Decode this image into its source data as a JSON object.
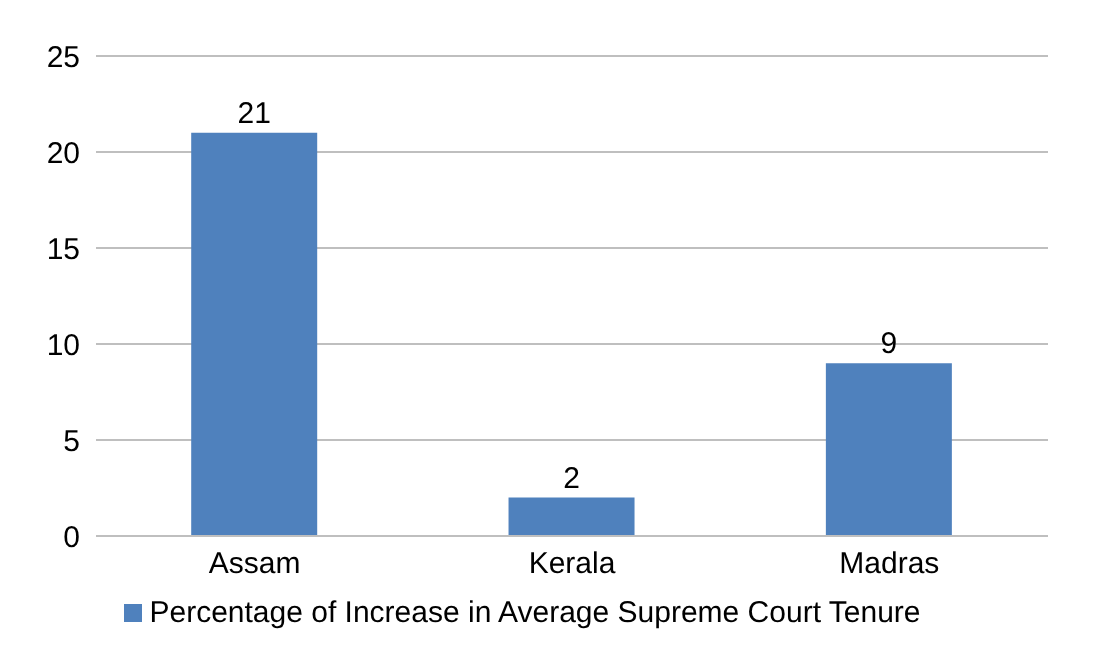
{
  "chart_data": {
    "type": "bar",
    "categories": [
      "Assam",
      "Kerala",
      "Madras"
    ],
    "series": [
      {
        "name": "Percentage of Increase in Average Supreme Court Tenure",
        "color": "#4f81bd",
        "values": [
          21,
          2,
          9
        ]
      }
    ],
    "ylim": [
      0,
      25
    ],
    "yticks": [
      0,
      5,
      10,
      15,
      20,
      25
    ],
    "grid": "y",
    "legend": "bottom",
    "data_labels": true
  }
}
